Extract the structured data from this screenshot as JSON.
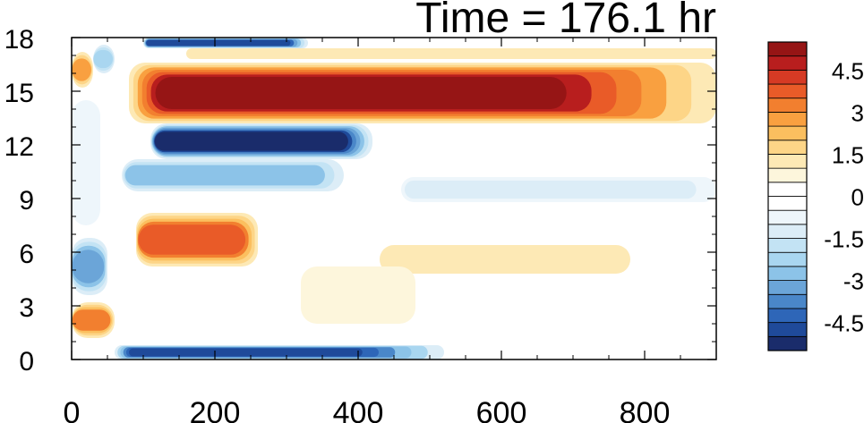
{
  "chart_data": {
    "type": "heatmap",
    "title": "Time = 176.1 hr",
    "xlabel": "",
    "ylabel": "",
    "xlim": [
      0,
      900
    ],
    "ylim": [
      0,
      18
    ],
    "x_ticks": [
      {
        "value": 0,
        "label": "0"
      },
      {
        "value": 200,
        "label": "200"
      },
      {
        "value": 400,
        "label": "400"
      },
      {
        "value": 600,
        "label": "600"
      },
      {
        "value": 800,
        "label": "800"
      }
    ],
    "y_ticks": [
      {
        "value": 0,
        "label": "0"
      },
      {
        "value": 3,
        "label": "3"
      },
      {
        "value": 6,
        "label": "6"
      },
      {
        "value": 9,
        "label": "9"
      },
      {
        "value": 12,
        "label": "12"
      },
      {
        "value": 15,
        "label": "15"
      },
      {
        "value": 18,
        "label": "18"
      }
    ],
    "colorbar": {
      "levels": [
        -5.5,
        -5,
        -4.5,
        -4,
        -3.5,
        -3,
        -2.5,
        -2,
        -1.5,
        -1,
        -0.5,
        0,
        0.5,
        1,
        1.5,
        2,
        2.5,
        3,
        3.5,
        4,
        4.5,
        5,
        5.5
      ],
      "colors": [
        "#1a2c6b",
        "#1f4a9a",
        "#2e66b8",
        "#4a87c9",
        "#6ba5d8",
        "#8cc3e8",
        "#a9d6f0",
        "#c3e3f4",
        "#dcedf7",
        "#eef6fb",
        "#ffffff",
        "#ffffff",
        "#fdf6dc",
        "#fde9b5",
        "#fdd587",
        "#fbbf5f",
        "#f9a040",
        "#f27f2f",
        "#e95b28",
        "#d63a24",
        "#b81e1e",
        "#961515"
      ],
      "labels": [
        {
          "value": 4.5,
          "label": "4.5"
        },
        {
          "value": 3,
          "label": "3"
        },
        {
          "value": 1.5,
          "label": "1.5"
        },
        {
          "value": 0,
          "label": "0"
        },
        {
          "value": -1.5,
          "label": "-1.5"
        },
        {
          "value": -3,
          "label": "-3"
        },
        {
          "value": -4.5,
          "label": "-4.5"
        }
      ]
    },
    "features": [
      {
        "x0": 80,
        "x1": 900,
        "y0": 13.2,
        "y1": 16.6,
        "value": 5.2,
        "taper": true
      },
      {
        "x0": 160,
        "x1": 900,
        "y0": 16.8,
        "y1": 17.4,
        "value": 1.0,
        "taper": false
      },
      {
        "x0": 110,
        "x1": 420,
        "y0": 11.2,
        "y1": 13.2,
        "value": -5.2,
        "taper": false
      },
      {
        "x0": 70,
        "x1": 380,
        "y0": 9.4,
        "y1": 11.2,
        "value": -2.6,
        "taper": false
      },
      {
        "x0": 100,
        "x1": 330,
        "y0": 17.4,
        "y1": 18.0,
        "value": -4.8,
        "taper": false
      },
      {
        "x0": 90,
        "x1": 260,
        "y0": 5.2,
        "y1": 8.2,
        "value": 3.6,
        "taper": false
      },
      {
        "x0": 430,
        "x1": 780,
        "y0": 4.8,
        "y1": 6.4,
        "value": 1.2,
        "taper": false
      },
      {
        "x0": 460,
        "x1": 900,
        "y0": 8.8,
        "y1": 10.2,
        "value": -1.4,
        "taper": false
      },
      {
        "x0": 60,
        "x1": 520,
        "y0": 0.0,
        "y1": 0.8,
        "value": -5.0,
        "taper": true
      },
      {
        "x0": 0,
        "x1": 60,
        "y0": 1.2,
        "y1": 3.2,
        "value": 3.0,
        "taper": false
      },
      {
        "x0": 0,
        "x1": 50,
        "y0": 3.6,
        "y1": 6.8,
        "value": -3.2,
        "taper": false
      },
      {
        "x0": 0,
        "x1": 30,
        "y0": 15.2,
        "y1": 17.2,
        "value": 2.6,
        "taper": false
      },
      {
        "x0": 30,
        "x1": 60,
        "y0": 16.0,
        "y1": 17.6,
        "value": -2.4,
        "taper": false
      },
      {
        "x0": 320,
        "x1": 480,
        "y0": 2.0,
        "y1": 5.2,
        "value": 0.8,
        "taper": false
      },
      {
        "x0": 0,
        "x1": 40,
        "y0": 7.5,
        "y1": 14.5,
        "value": -0.6,
        "taper": false
      }
    ]
  }
}
